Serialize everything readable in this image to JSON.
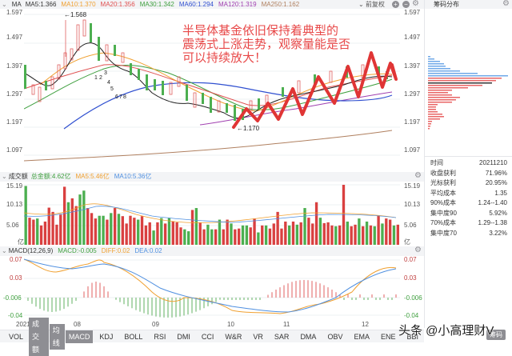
{
  "main_legend": {
    "title": "MA",
    "items": [
      {
        "label": "MA5:1.366",
        "color": "#333333"
      },
      {
        "label": "MA10:1.370",
        "color": "#f0a030"
      },
      {
        "label": "MA20:1.356",
        "color": "#e05050"
      },
      {
        "label": "MA30:1.342",
        "color": "#40a040"
      },
      {
        "label": "MA60:1.294",
        "color": "#3050d0"
      },
      {
        "label": "MA120:1.319",
        "color": "#a040b0"
      },
      {
        "label": "MA250:1.162",
        "color": "#b08060"
      }
    ]
  },
  "toolbar": {
    "adjust_label": "前复权"
  },
  "chip_panel": {
    "title": "筹码分布",
    "info": [
      {
        "label": "时间",
        "value": "20211210"
      },
      {
        "label": "收盘获利",
        "value": "71.96%"
      },
      {
        "label": "光标获利",
        "value": "20.95%"
      },
      {
        "label": "平均成本",
        "value": "1.35"
      },
      {
        "label": "90%成本",
        "value": "1.24--1.40"
      },
      {
        "label": "集中度90",
        "value": "5.92%"
      },
      {
        "label": "70%成本",
        "value": "1.29--1.38"
      },
      {
        "label": "集中度70",
        "value": "3.22%"
      }
    ],
    "button": "筹码"
  },
  "annotation": {
    "line1": "半导体基金依旧保持着典型的",
    "line2": "震荡式上涨走势，观察量能是否",
    "line3": "可以持续放大！",
    "high_marker": "1.568",
    "low_marker": "1.170",
    "wave_numbers": [
      "1",
      "2",
      "3",
      "4",
      "5",
      "6",
      "7",
      "8"
    ]
  },
  "volume_legend": {
    "title": "成交额",
    "items": [
      {
        "label": "总金额:4.62亿",
        "color": "#40a040"
      },
      {
        "label": "MA5:5.46亿",
        "color": "#f0a030"
      },
      {
        "label": "MA10:5.36亿",
        "color": "#5090e0"
      }
    ],
    "unit": "亿"
  },
  "macd_legend": {
    "title": "MACD(12,26,9)",
    "items": [
      {
        "label": "MACD:-0.005",
        "color": "#40a040"
      },
      {
        "label": "DIFF:0.02",
        "color": "#f0a030"
      },
      {
        "label": "DEA:0.02",
        "color": "#5090e0"
      }
    ]
  },
  "x_axis": [
    "2021/07",
    "08",
    "09",
    "10",
    "11",
    "12"
  ],
  "indicator_tabs": [
    {
      "label": "VOL",
      "selected": false
    },
    {
      "label": "成交额",
      "selected": true
    },
    {
      "label": "均线",
      "selected": true
    },
    {
      "label": "MACD",
      "selected": true
    },
    {
      "label": "KDJ",
      "selected": false
    },
    {
      "label": "BOLL",
      "selected": false
    },
    {
      "label": "RSI",
      "selected": false
    },
    {
      "label": "DMI",
      "selected": false
    },
    {
      "label": "CCI",
      "selected": false
    },
    {
      "label": "W&R",
      "selected": false
    },
    {
      "label": "VR",
      "selected": false
    },
    {
      "label": "SAR",
      "selected": false
    },
    {
      "label": "DMA",
      "selected": false
    },
    {
      "label": "OBV",
      "selected": false
    },
    {
      "label": "EMA",
      "selected": false
    },
    {
      "label": "ENE",
      "selected": false
    },
    {
      "label": "BBI",
      "selected": false
    }
  ],
  "watermark": "头条 @小高理财V",
  "chart_data": [
    {
      "type": "candlestick",
      "title": "MA",
      "y_ticks": [
        "1.597",
        "1.497",
        "1.397",
        "1.297",
        "1.197",
        "1.097"
      ],
      "ylim": [
        1.07,
        1.61
      ],
      "x_ticks": [
        "2021/07",
        "08",
        "09",
        "10",
        "11",
        "12"
      ],
      "high": 1.568,
      "low": 1.17,
      "close_approx": [
        1.36,
        1.32,
        1.3,
        1.31,
        1.28,
        1.29,
        1.31,
        1.35,
        1.4,
        1.43,
        1.45,
        1.47,
        1.5,
        1.55,
        1.5,
        1.44,
        1.42,
        1.4,
        1.4,
        1.38,
        1.38,
        1.36,
        1.35,
        1.33,
        1.33,
        1.3,
        1.3,
        1.31,
        1.32,
        1.35,
        1.33,
        1.32,
        1.31,
        1.3,
        1.29,
        1.27,
        1.26,
        1.28,
        1.27,
        1.26,
        1.25,
        1.25,
        1.24,
        1.23,
        1.2,
        1.21,
        1.24,
        1.25,
        1.26,
        1.27,
        1.28,
        1.27,
        1.28,
        1.3,
        1.3,
        1.32,
        1.32,
        1.33,
        1.34,
        1.35,
        1.36,
        1.35,
        1.37,
        1.38,
        1.37,
        1.38,
        1.39,
        1.37,
        1.37,
        1.36
      ],
      "series": [
        {
          "name": "MA5",
          "last": 1.366
        },
        {
          "name": "MA10",
          "last": 1.37
        },
        {
          "name": "MA20",
          "last": 1.356
        },
        {
          "name": "MA30",
          "last": 1.342
        },
        {
          "name": "MA60",
          "last": 1.294
        },
        {
          "name": "MA120",
          "last": 1.319
        },
        {
          "name": "MA250",
          "last": 1.162
        }
      ]
    },
    {
      "type": "bar",
      "title": "成交额",
      "unit": "亿",
      "y_ticks": [
        "15.19",
        "10.13",
        "5.06"
      ],
      "values": [
        15.2,
        7.0,
        6.5,
        6.8,
        5.0,
        6.0,
        9.6,
        8.5,
        5.2,
        7.8,
        15.0,
        11.0,
        12.0,
        10.0,
        13.0,
        14.0,
        9.5,
        8.2,
        6.8,
        7.5,
        7.5,
        6.5,
        8.2,
        9.5,
        8.0,
        7.4,
        5.5,
        7.5,
        7.0,
        6.5,
        7.4,
        5.0,
        5.8,
        3.7,
        5.8,
        6.9,
        5.5,
        6.9,
        6.0,
        5.8,
        4.5,
        4.0,
        3.5,
        9.0,
        9.5,
        5.8,
        4.0,
        5.2,
        4.0,
        4.0,
        6.5,
        4.0,
        6.5,
        5.5,
        4.0,
        4.2,
        5.0,
        5.0,
        4.5,
        6.8,
        3.2,
        5.0,
        5.0,
        4.2,
        5.5,
        8.5,
        4.2,
        6.0,
        5.0,
        6.0,
        5.2,
        5.8,
        9.5,
        7.0,
        5.5,
        11.0,
        7.0,
        5.6,
        5.8,
        5.0,
        4.8,
        5.0,
        15.5,
        6.0,
        4.8,
        5.2,
        6.8,
        4.8,
        6.0,
        5.0,
        4.8,
        7.5,
        5.5,
        6.8,
        6.5,
        5.0,
        5.2
      ],
      "series": [
        {
          "name": "总金额",
          "last": 4.62
        },
        {
          "name": "MA5",
          "last": 5.46
        },
        {
          "name": "MA10",
          "last": 5.36
        }
      ]
    },
    {
      "type": "line",
      "title": "MACD(12,26,9)",
      "y_ticks": [
        "0.07",
        "0.03",
        "-0.006",
        "-0.04"
      ],
      "ylim": [
        -0.045,
        0.075
      ],
      "series": [
        {
          "name": "DIFF",
          "values": [
            0.07,
            0.06,
            0.05,
            0.048,
            0.055,
            0.06,
            0.065,
            0.072,
            0.065,
            0.06,
            0.055,
            0.045,
            0.035,
            0.02,
            0.005,
            -0.006,
            -0.004,
            -0.008,
            -0.012,
            -0.02,
            -0.026,
            -0.026,
            -0.027,
            -0.03,
            -0.032,
            -0.03,
            -0.029,
            -0.033,
            -0.034,
            -0.032,
            -0.028,
            -0.024,
            -0.02,
            -0.012,
            -0.006,
            0.002,
            0.01,
            0.016,
            0.022,
            0.024,
            0.02,
            0.024,
            0.026,
            0.022,
            0.025,
            0.022
          ],
          "last": 0.02
        },
        {
          "name": "DEA",
          "values": [
            0.07,
            0.065,
            0.058,
            0.055,
            0.056,
            0.058,
            0.062,
            0.065,
            0.064,
            0.062,
            0.058,
            0.052,
            0.045,
            0.035,
            0.025,
            0.015,
            0.01,
            0.005,
            -0.002,
            -0.01,
            -0.016,
            -0.02,
            -0.023,
            -0.026,
            -0.028,
            -0.029,
            -0.03,
            -0.03,
            -0.031,
            -0.03,
            -0.028,
            -0.025,
            -0.02,
            -0.015,
            -0.008,
            -0.002,
            0.004,
            0.01,
            0.015,
            0.018,
            0.019,
            0.021,
            0.022,
            0.022,
            0.022,
            0.02
          ],
          "last": 0.02
        },
        {
          "name": "MACD",
          "last": -0.005
        }
      ]
    },
    {
      "type": "bar",
      "title": "筹码分布",
      "orientation": "horizontal",
      "price_levels_approx": [
        1.42,
        1.41,
        1.4,
        1.39,
        1.38,
        1.37,
        1.36,
        1.35,
        1.34,
        1.33,
        1.32,
        1.31,
        1.3,
        1.29,
        1.28,
        1.27,
        1.26,
        1.25,
        1.24,
        1.23,
        1.22,
        1.21,
        1.2,
        1.19,
        1.18,
        1.17
      ],
      "values_relative": [
        5,
        15,
        22,
        25,
        40,
        60,
        100,
        90,
        80,
        70,
        40,
        30,
        25,
        45,
        35,
        15,
        10,
        10,
        15,
        20,
        20,
        15,
        5,
        4,
        3,
        2
      ]
    }
  ]
}
